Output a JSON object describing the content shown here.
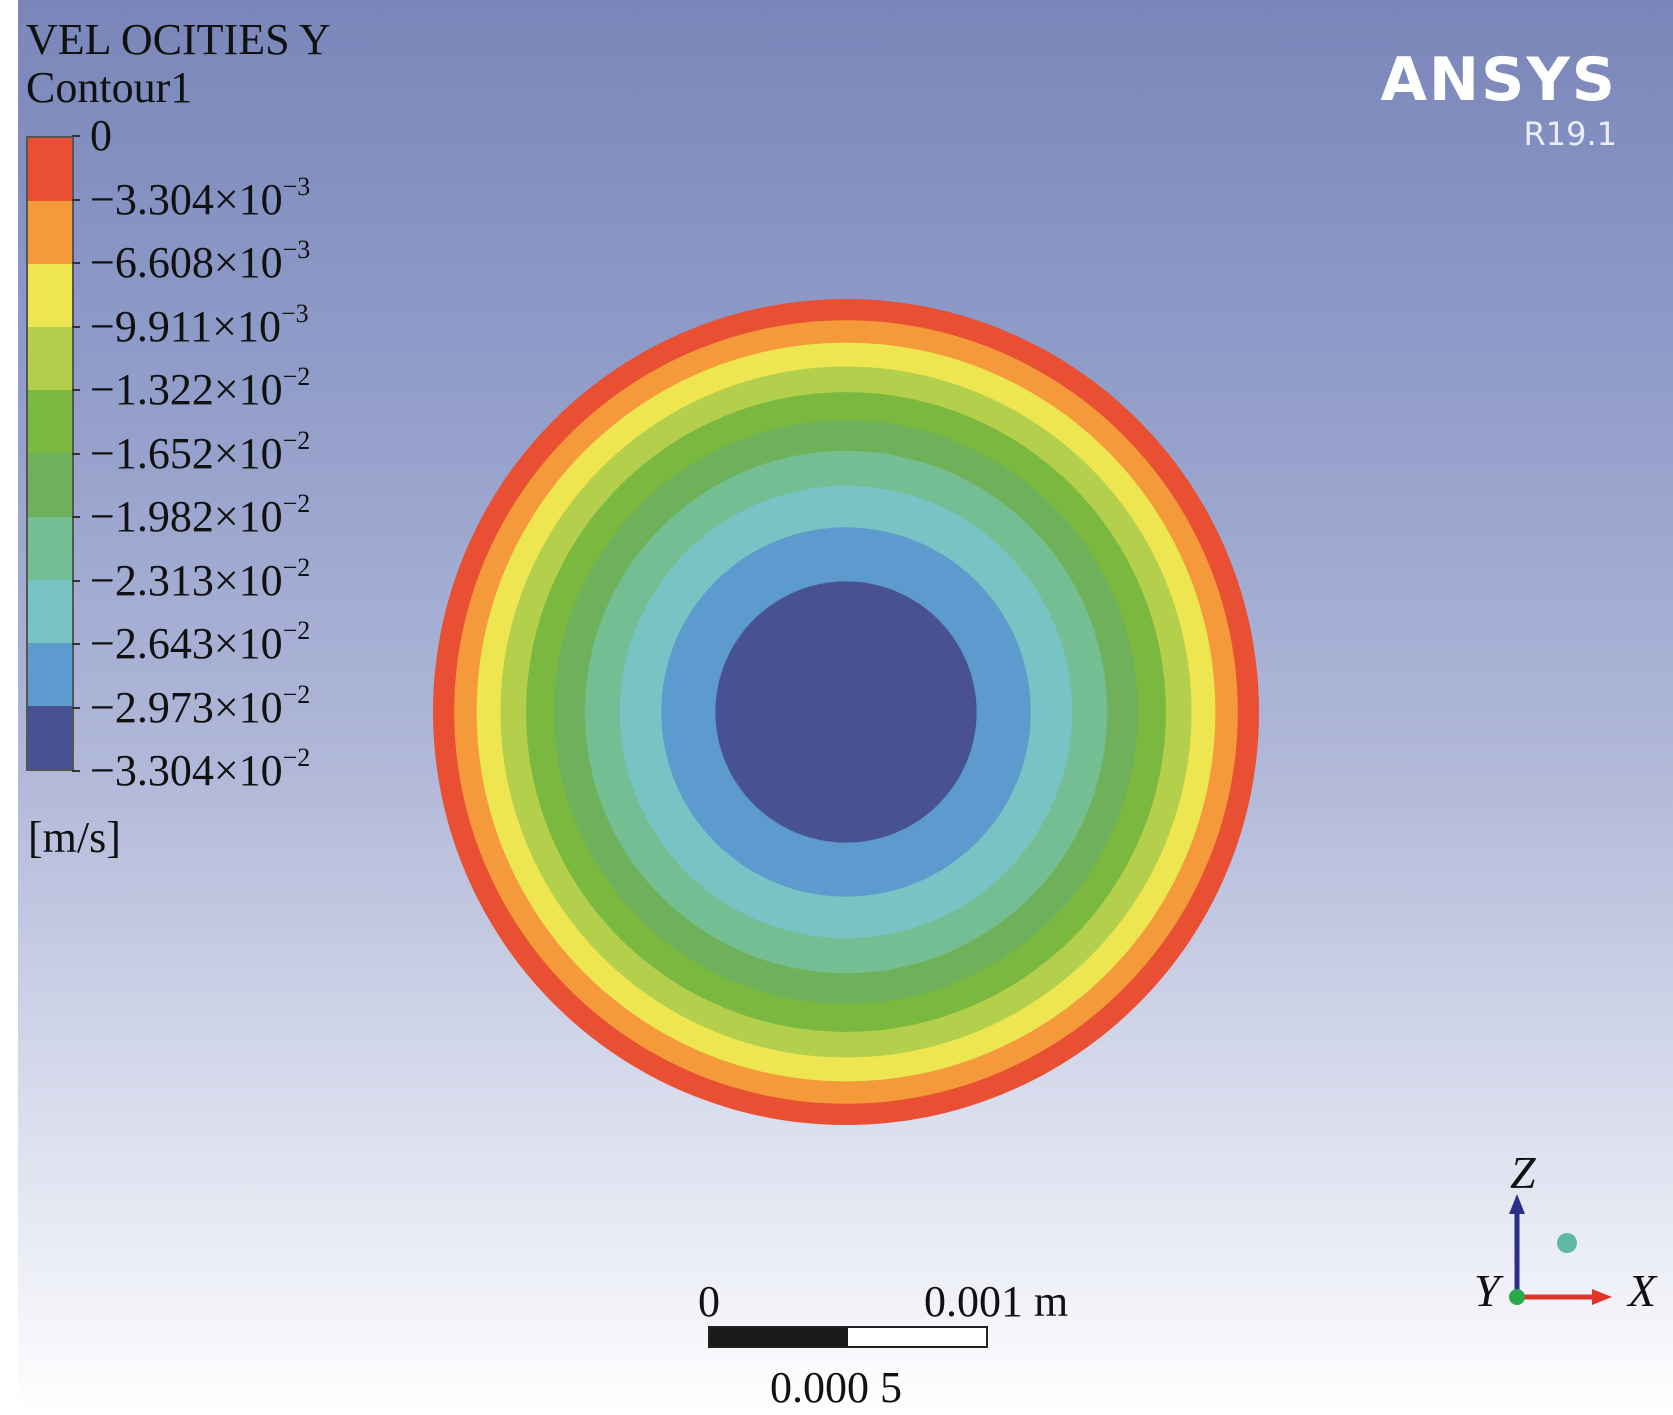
{
  "legend": {
    "variable": "VEL OCITIES Y",
    "name": "Contour1",
    "units": "[m/s]",
    "labels": [
      {
        "mantissa": "0",
        "exponent": ""
      },
      {
        "mantissa": "−3.304×10",
        "exponent": "−3"
      },
      {
        "mantissa": "−6.608×10",
        "exponent": "−3"
      },
      {
        "mantissa": "−9.911×10",
        "exponent": "−3"
      },
      {
        "mantissa": "−1.322×10",
        "exponent": "−2"
      },
      {
        "mantissa": "−1.652×10",
        "exponent": "−2"
      },
      {
        "mantissa": "−1.982×10",
        "exponent": "−2"
      },
      {
        "mantissa": "−2.313×10",
        "exponent": "−2"
      },
      {
        "mantissa": "−2.643×10",
        "exponent": "−2"
      },
      {
        "mantissa": "−2.973×10",
        "exponent": "−2"
      },
      {
        "mantissa": "−3.304×10",
        "exponent": "−2"
      }
    ],
    "colors": [
      "#e84f33",
      "#f59a3b",
      "#ede650",
      "#b4cf4c",
      "#7ab83f",
      "#6eb15a",
      "#74be94",
      "#78c3c3",
      "#5d9acd",
      "#485293"
    ]
  },
  "brand": {
    "name": "ANSYS",
    "version": "R19.1"
  },
  "scale_bar": {
    "zero_label": "0",
    "max_label": "0.001",
    "unit": "m",
    "mid_label": "0.000 5"
  },
  "axes_triad": {
    "z_label": "Z",
    "x_label": "X",
    "y_label": "Y",
    "z_color": "#2c2f8a",
    "x_color": "#e0342a",
    "y_color": "#2aa84a"
  },
  "contour": {
    "outer_band_color": "#e84f33",
    "core_color": "#485293"
  }
}
